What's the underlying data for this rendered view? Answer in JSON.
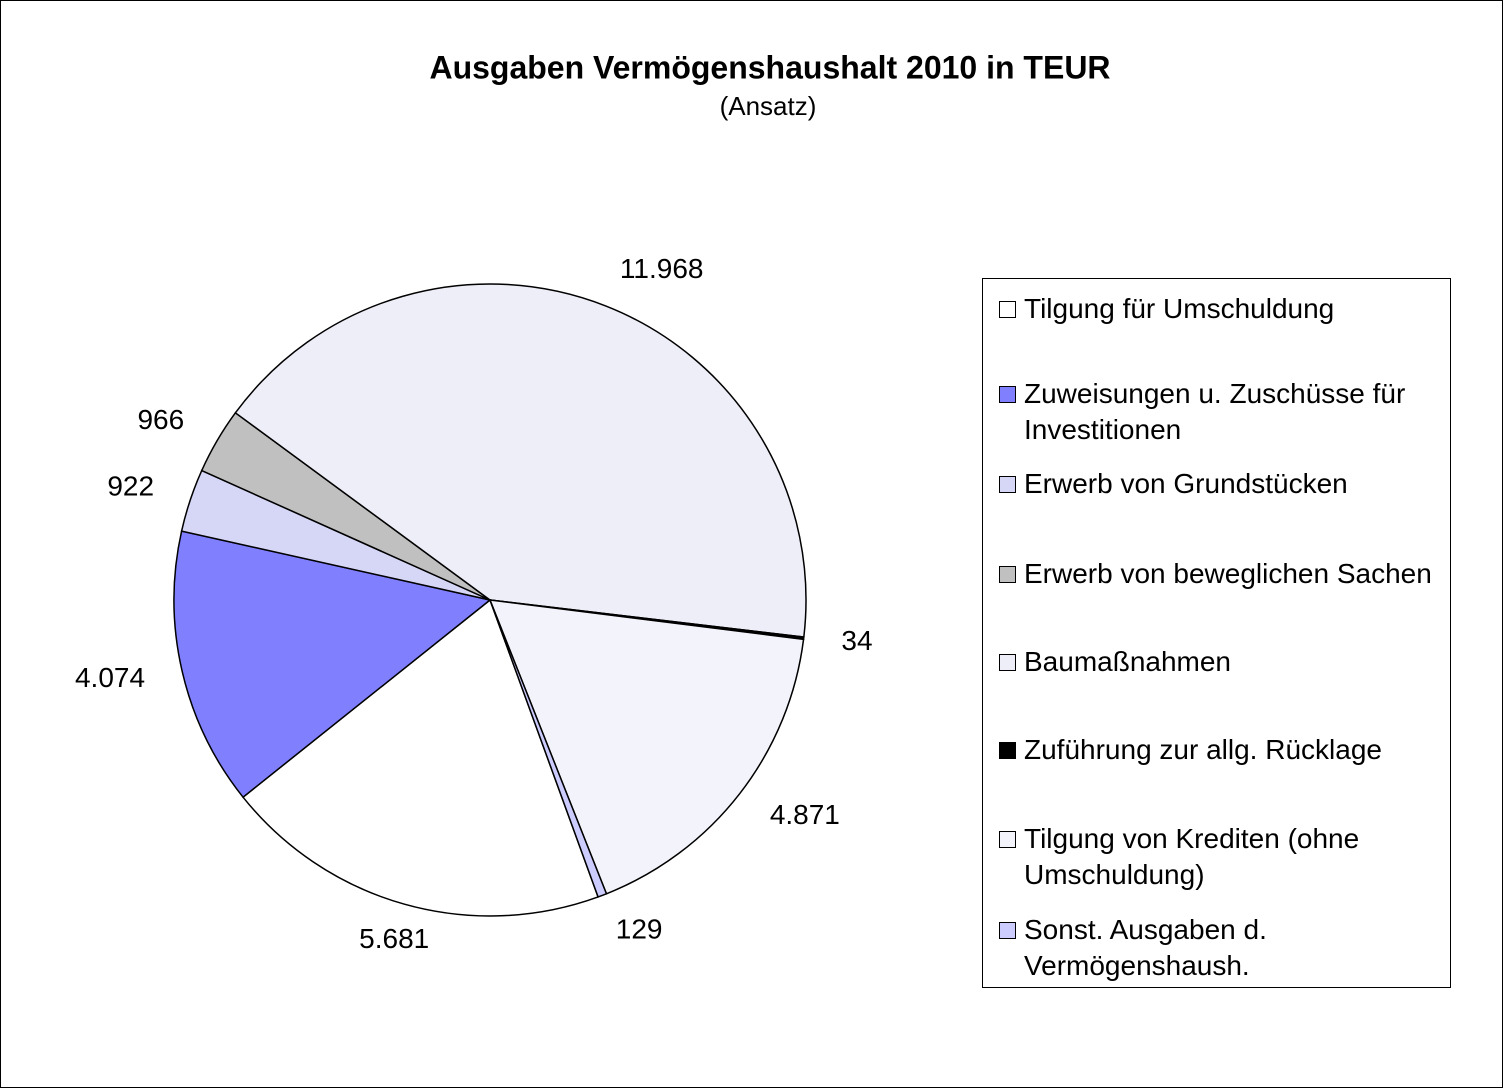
{
  "chart_data": {
    "type": "pie",
    "title": "Ausgaben Vermögenshaushalt 2010 in TEUR",
    "subtitle": "(Ansatz)",
    "categories": [
      "Tilgung für Umschuldung",
      "Zuweisungen u. Zuschüsse für Investitionen",
      "Erwerb von Grundstücken",
      "Erwerb von beweglichen Sachen",
      "Baumaßnahmen",
      "Zuführung zur allg. Rücklage",
      "Tilgung von Krediten (ohne Umschuldung)",
      "Sonst. Ausgaben d. Vermögenshaush."
    ],
    "values": [
      5681,
      4074,
      922,
      966,
      11968,
      34,
      4871,
      129
    ],
    "value_labels": [
      "5.681",
      "4.074",
      "922",
      "966",
      "11.968",
      "34",
      "4.871",
      "129"
    ],
    "colors": [
      "#ffffff",
      "#8080ff",
      "#d6d6f6",
      "#c0c0c0",
      "#eeeef8",
      "#000000",
      "#f3f3fb",
      "#ccccff"
    ],
    "legend": "right"
  }
}
